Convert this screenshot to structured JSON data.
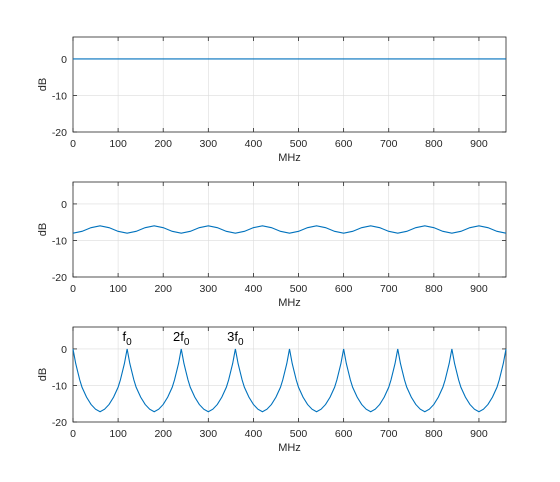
{
  "colors": {
    "line": "#0072bd",
    "axis": "#262626",
    "grid": "#dcdcdc"
  },
  "chart_data": [
    {
      "type": "line",
      "id": "top",
      "xlabel": "MHz",
      "ylabel": "dB",
      "xlim": [
        0,
        960
      ],
      "ylim": [
        -20,
        6
      ],
      "xticks": [
        0,
        100,
        200,
        300,
        400,
        500,
        600,
        700,
        800,
        900
      ],
      "yticks": [
        -20,
        -10,
        0
      ],
      "grid": true,
      "series": [
        {
          "x": [
            0,
            960
          ],
          "y": [
            0,
            0
          ]
        }
      ]
    },
    {
      "type": "line",
      "id": "middle",
      "xlabel": "MHz",
      "ylabel": "dB",
      "xlim": [
        0,
        960
      ],
      "ylim": [
        -20,
        6
      ],
      "xticks": [
        0,
        100,
        200,
        300,
        400,
        500,
        600,
        700,
        800,
        900
      ],
      "yticks": [
        -20,
        -10,
        0
      ],
      "grid": true,
      "series": [
        {
          "x": [
            0,
            20,
            40,
            60,
            80,
            100,
            120,
            140,
            160,
            180,
            200,
            220,
            240,
            260,
            280,
            300,
            320,
            340,
            360,
            380,
            400,
            420,
            440,
            460,
            480,
            500,
            520,
            540,
            560,
            580,
            600,
            620,
            640,
            660,
            680,
            700,
            720,
            740,
            760,
            780,
            800,
            820,
            840,
            860,
            880,
            900,
            920,
            940,
            960
          ],
          "y": [
            -8.0,
            -7.5,
            -6.5,
            -6.0,
            -6.5,
            -7.5,
            -8.0,
            -7.5,
            -6.5,
            -6.0,
            -6.5,
            -7.5,
            -8.0,
            -7.5,
            -6.5,
            -6.0,
            -6.5,
            -7.5,
            -8.0,
            -7.5,
            -6.5,
            -6.0,
            -6.5,
            -7.5,
            -8.0,
            -7.5,
            -6.5,
            -6.0,
            -6.5,
            -7.5,
            -8.0,
            -7.5,
            -6.5,
            -6.0,
            -6.5,
            -7.5,
            -8.0,
            -7.5,
            -6.5,
            -6.0,
            -6.5,
            -7.5,
            -8.0,
            -7.5,
            -6.5,
            -6.0,
            -6.5,
            -7.5,
            -8.0
          ]
        }
      ]
    },
    {
      "type": "line",
      "id": "bottom",
      "xlabel": "MHz",
      "ylabel": "dB",
      "xlim": [
        0,
        960
      ],
      "ylim": [
        -20,
        6
      ],
      "xticks": [
        0,
        100,
        200,
        300,
        400,
        500,
        600,
        700,
        800,
        900
      ],
      "yticks": [
        -20,
        -10,
        0
      ],
      "grid": true,
      "series": [
        {
          "x": [
            0,
            3,
            6,
            10,
            15,
            20,
            30,
            40,
            50,
            60,
            70,
            80,
            90,
            100,
            105,
            110,
            114,
            117,
            120,
            123,
            126,
            130,
            135,
            140,
            150,
            160,
            170,
            180,
            190,
            200,
            210,
            220,
            225,
            230,
            234,
            237,
            240,
            243,
            246,
            250,
            255,
            260,
            270,
            280,
            290,
            300,
            310,
            320,
            330,
            340,
            345,
            350,
            354,
            357,
            360,
            363,
            366,
            370,
            375,
            380,
            390,
            400,
            410,
            420,
            430,
            440,
            450,
            460,
            465,
            470,
            474,
            477,
            480,
            483,
            486,
            490,
            495,
            500,
            510,
            520,
            530,
            540,
            550,
            560,
            570,
            580,
            585,
            590,
            594,
            597,
            600,
            603,
            606,
            610,
            615,
            620,
            630,
            640,
            650,
            660,
            670,
            680,
            690,
            700,
            705,
            710,
            714,
            717,
            720,
            723,
            726,
            730,
            735,
            740,
            750,
            760,
            770,
            780,
            790,
            800,
            810,
            820,
            825,
            830,
            834,
            837,
            840,
            843,
            846,
            850,
            855,
            860,
            870,
            880,
            890,
            900,
            910,
            920,
            930,
            940,
            945,
            950,
            954,
            957,
            960
          ],
          "y": [
            0,
            -2,
            -4,
            -6,
            -8.5,
            -10.5,
            -13.2,
            -15.2,
            -16.5,
            -17.2,
            -16.5,
            -15.2,
            -13.2,
            -10.5,
            -8.5,
            -6,
            -4,
            -2,
            0,
            -2,
            -4,
            -6,
            -8.5,
            -10.5,
            -13.2,
            -15.2,
            -16.5,
            -17.2,
            -16.5,
            -15.2,
            -13.2,
            -10.5,
            -8.5,
            -6,
            -4,
            -2,
            0,
            -2,
            -4,
            -6,
            -8.5,
            -10.5,
            -13.2,
            -15.2,
            -16.5,
            -17.2,
            -16.5,
            -15.2,
            -13.2,
            -10.5,
            -8.5,
            -6,
            -4,
            -2,
            0,
            -2,
            -4,
            -6,
            -8.5,
            -10.5,
            -13.2,
            -15.2,
            -16.5,
            -17.2,
            -16.5,
            -15.2,
            -13.2,
            -10.5,
            -8.5,
            -6,
            -4,
            -2,
            0,
            -2,
            -4,
            -6,
            -8.5,
            -10.5,
            -13.2,
            -15.2,
            -16.5,
            -17.2,
            -16.5,
            -15.2,
            -13.2,
            -10.5,
            -8.5,
            -6,
            -4,
            -2,
            0,
            -2,
            -4,
            -6,
            -8.5,
            -10.5,
            -13.2,
            -15.2,
            -16.5,
            -17.2,
            -16.5,
            -15.2,
            -13.2,
            -10.5,
            -8.5,
            -6,
            -4,
            -2,
            0,
            -2,
            -4,
            -6,
            -8.5,
            -10.5,
            -13.2,
            -15.2,
            -16.5,
            -17.2,
            -16.5,
            -15.2,
            -13.2,
            -10.5,
            -8.5,
            -6,
            -4,
            -2,
            0,
            -2,
            -4,
            -6,
            -8.5,
            -10.5,
            -13.2,
            -15.2,
            -16.5,
            -17.2,
            -16.5,
            -15.2,
            -13.2,
            -10.5,
            -8.5,
            -6,
            -4,
            -2,
            0
          ]
        }
      ],
      "annotations": [
        {
          "base": "f",
          "sub": "0",
          "x": 120,
          "y": 2.2
        },
        {
          "base": "2f",
          "sub": "0",
          "x": 240,
          "y": 2.2
        },
        {
          "base": "3f",
          "sub": "0",
          "x": 360,
          "y": 2.2
        }
      ]
    }
  ]
}
